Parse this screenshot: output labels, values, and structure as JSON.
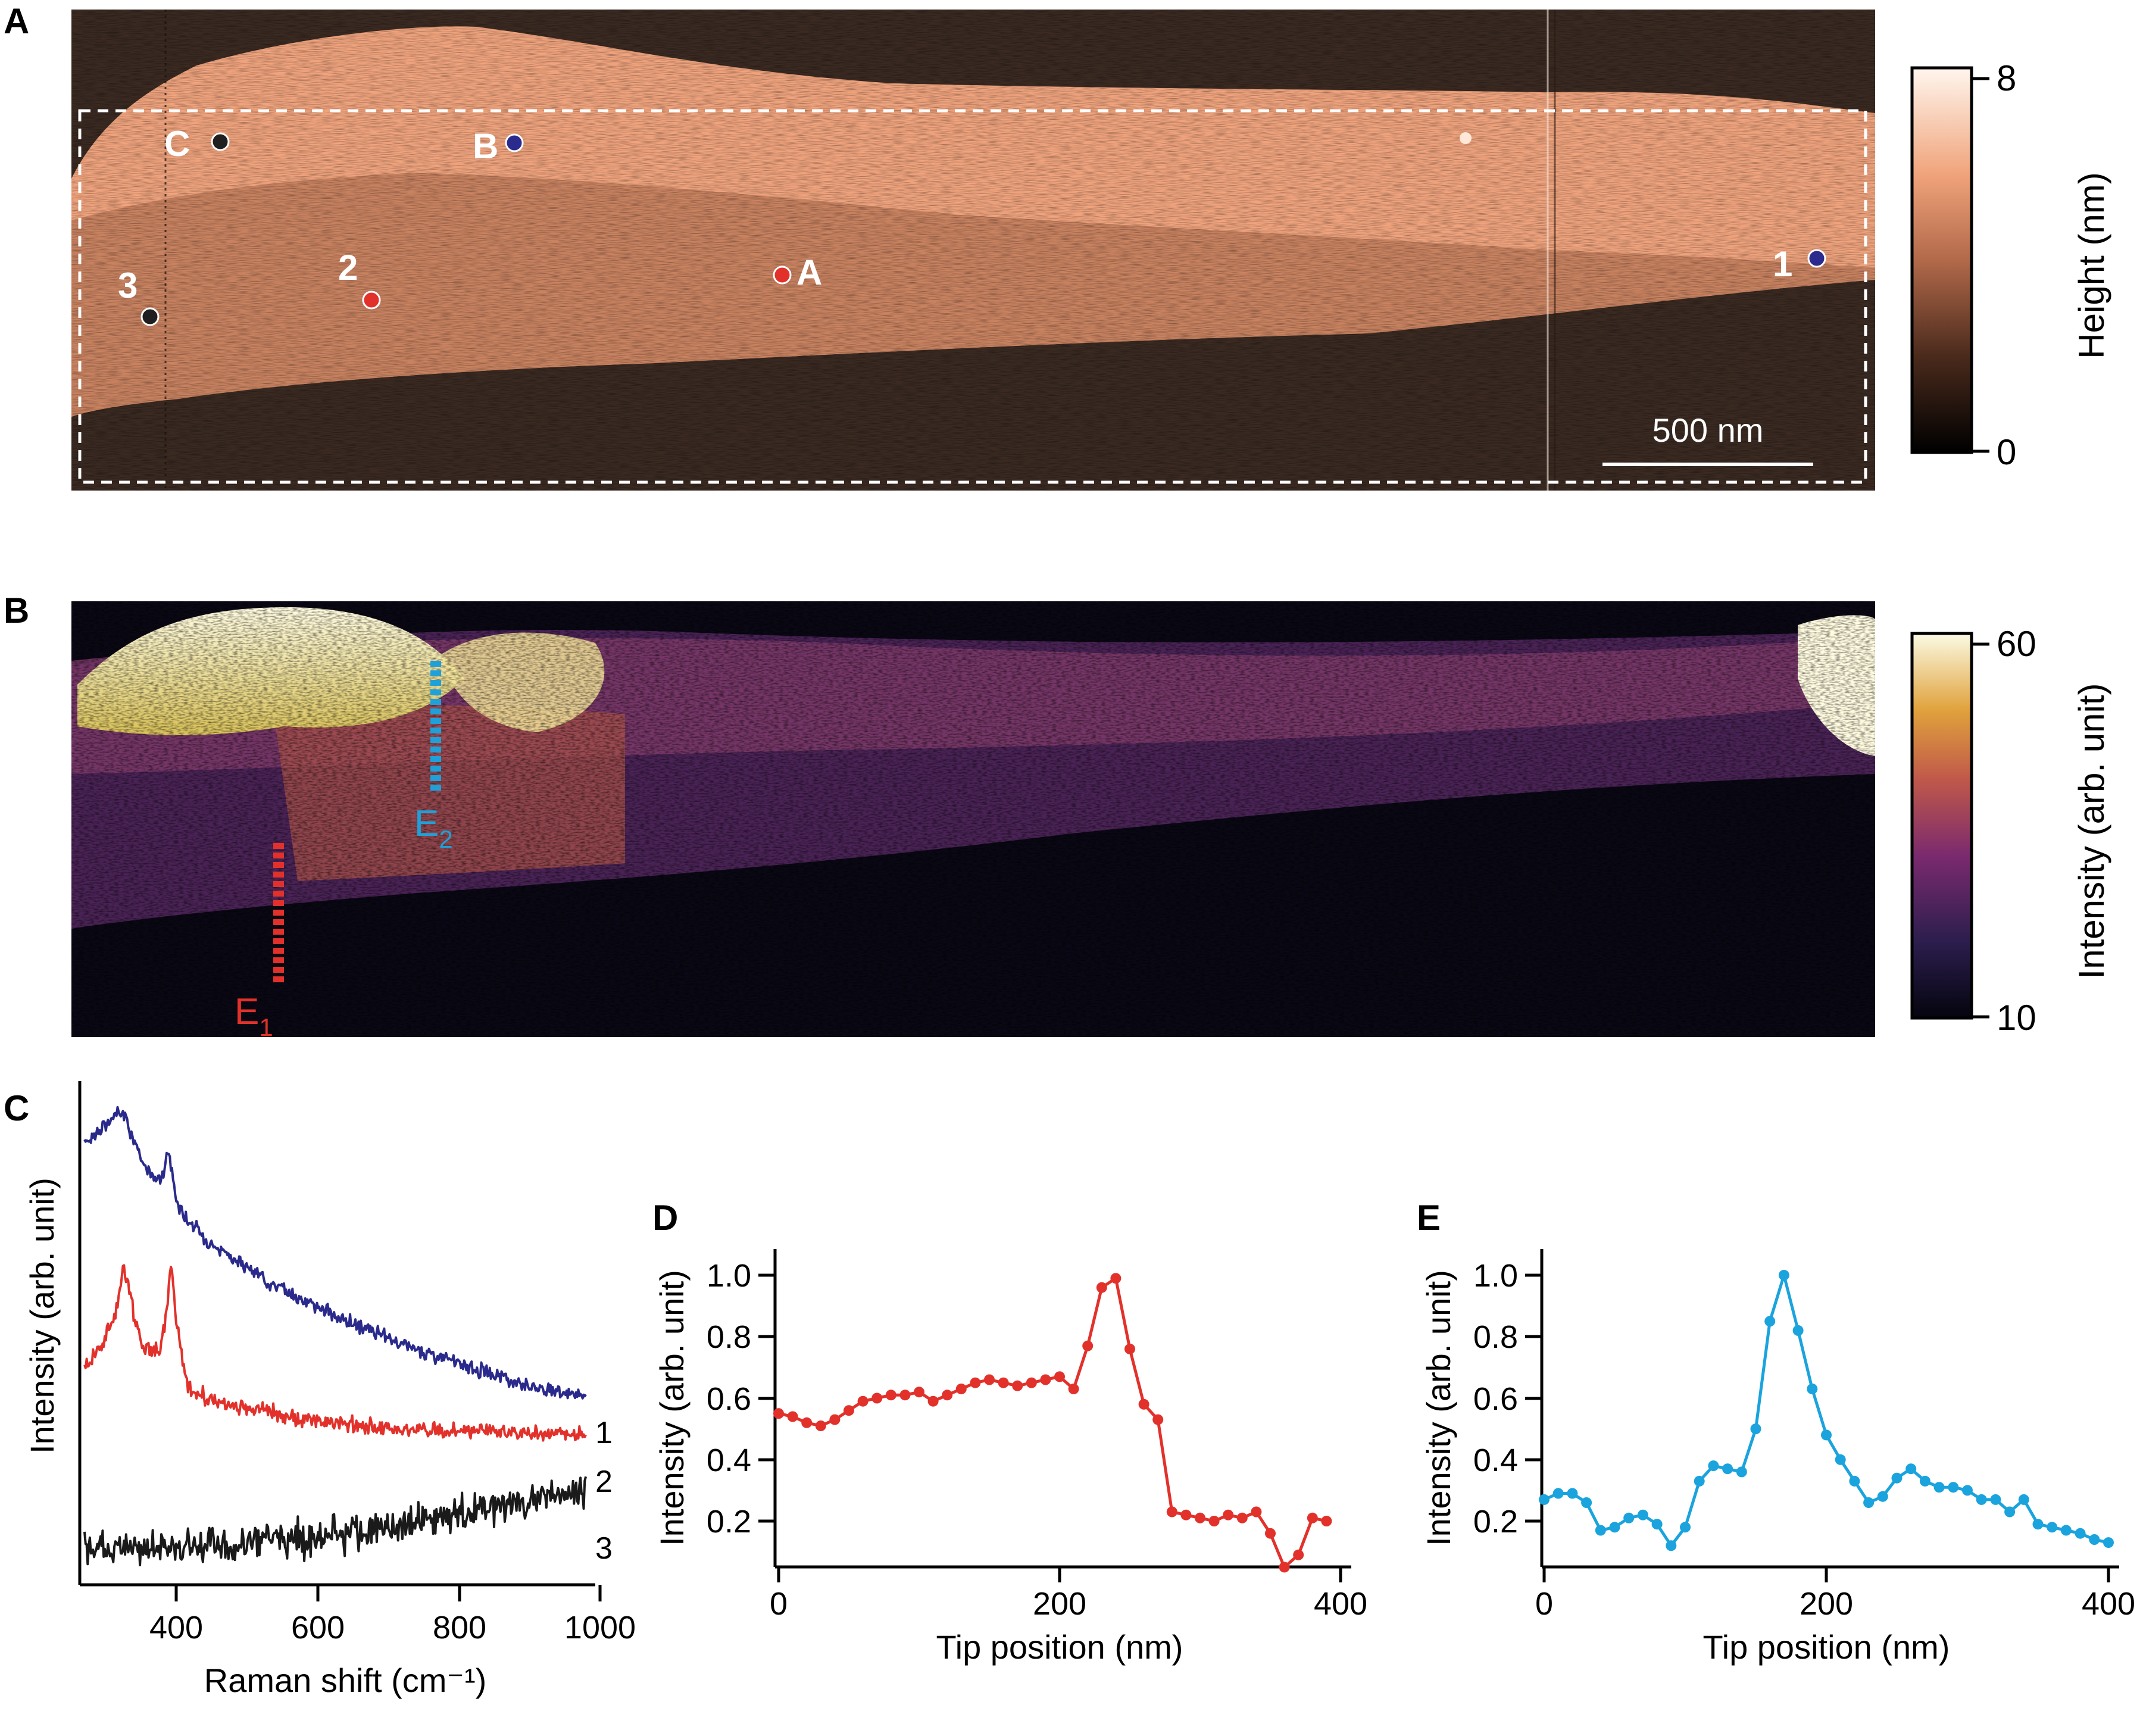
{
  "panels": {
    "A": {
      "letter": "A",
      "markers": [
        {
          "label": "C",
          "color": "#1f1f1f"
        },
        {
          "label": "B",
          "color": "#2b2b8e"
        },
        {
          "label": "3",
          "color": "#1f1f1f"
        },
        {
          "label": "2",
          "color": "#e2312b"
        },
        {
          "label": "A",
          "color": "#e2312b"
        },
        {
          "label": "1",
          "color": "#2b2b8e"
        }
      ],
      "scalebar": "500 nm",
      "colorbar": {
        "label": "Height (nm)",
        "max": "8",
        "min": "0"
      }
    },
    "B": {
      "letter": "B",
      "lines": [
        {
          "label": "E",
          "sub": "1",
          "color": "#e2312b"
        },
        {
          "label": "E",
          "sub": "2",
          "color": "#1fa0d8"
        }
      ],
      "colorbar": {
        "label": "Intensity (arb. unit)",
        "max": "60",
        "min": "10"
      }
    },
    "C": {
      "letter": "C"
    },
    "D": {
      "letter": "D"
    },
    "E": {
      "letter": "E"
    }
  },
  "chart_data": [
    {
      "id": "C",
      "type": "line",
      "xlabel": "Raman shift (cm⁻¹)",
      "ylabel": "Intensity (arb. unit)",
      "xlim": [
        290,
        1010
      ],
      "xticks": [
        "400",
        "600",
        "800",
        "1000"
      ],
      "series": [
        {
          "name": "1",
          "color": "#2a2a8c",
          "x": [
            295,
            310,
            330,
            345,
            352,
            362,
            375,
            390,
            405,
            413,
            418,
            425,
            440,
            470,
            520,
            580,
            650,
            720,
            800,
            870,
            940,
            1000
          ],
          "y": [
            7.35,
            7.5,
            7.7,
            7.95,
            7.85,
            7.45,
            7.0,
            6.75,
            6.7,
            7.25,
            6.8,
            6.25,
            5.95,
            5.55,
            5.1,
            4.65,
            4.2,
            3.8,
            3.45,
            3.15,
            2.9,
            2.75
          ],
          "noise": 0.06
        },
        {
          "name": "2",
          "color": "#e2312b",
          "x": [
            295,
            320,
            340,
            350,
            360,
            375,
            400,
            410,
            417,
            425,
            440,
            470,
            520,
            600,
            700,
            800,
            900,
            1000
          ],
          "y": [
            3.3,
            3.7,
            4.3,
            5.2,
            4.5,
            3.7,
            3.55,
            4.3,
            5.15,
            4.0,
            2.95,
            2.7,
            2.55,
            2.35,
            2.2,
            2.15,
            2.1,
            2.05
          ],
          "noise": 0.07
        },
        {
          "name": "3",
          "color": "#1a1a1a",
          "x": [
            295,
            400,
            500,
            600,
            700,
            800,
            900,
            1000
          ],
          "y": [
            0.0,
            0.0,
            0.05,
            0.2,
            0.35,
            0.55,
            0.85,
            1.05
          ],
          "noise": 0.16
        }
      ]
    },
    {
      "id": "D",
      "type": "line",
      "xlabel": "Tip position (nm)",
      "ylabel": "Intensity (arb. unit)",
      "xlim": [
        0,
        410
      ],
      "ylim": [
        0.04,
        1.04
      ],
      "xticks": [
        "0",
        "200",
        "400"
      ],
      "yticks": [
        "0.2",
        "0.4",
        "0.6",
        "0.8",
        "1.0"
      ],
      "series": [
        {
          "name": "",
          "color": "#e2312b",
          "x": [
            0,
            10,
            20,
            30,
            40,
            50,
            60,
            70,
            80,
            90,
            100,
            110,
            120,
            130,
            140,
            150,
            160,
            170,
            180,
            190,
            200,
            210,
            220,
            230,
            240,
            250,
            260,
            270,
            280,
            290,
            300,
            310,
            320,
            330,
            340,
            350,
            360,
            370,
            380,
            390
          ],
          "y": [
            0.55,
            0.54,
            0.52,
            0.51,
            0.53,
            0.56,
            0.59,
            0.6,
            0.61,
            0.61,
            0.62,
            0.59,
            0.61,
            0.63,
            0.65,
            0.66,
            0.65,
            0.64,
            0.65,
            0.66,
            0.67,
            0.63,
            0.77,
            0.96,
            0.99,
            0.76,
            0.58,
            0.53,
            0.23,
            0.22,
            0.21,
            0.2,
            0.22,
            0.21,
            0.23,
            0.16,
            0.05,
            0.09,
            0.21,
            0.2
          ]
        }
      ]
    },
    {
      "id": "E",
      "type": "line",
      "xlabel": "Tip position (nm)",
      "ylabel": "Intensity (arb. unit)",
      "xlim": [
        0,
        410
      ],
      "ylim": [
        0.04,
        1.04
      ],
      "xticks": [
        "0",
        "200",
        "400"
      ],
      "yticks": [
        "0.2",
        "0.4",
        "0.6",
        "0.8",
        "1.0"
      ],
      "series": [
        {
          "name": "",
          "color": "#1aa3dd",
          "x": [
            0,
            10,
            20,
            30,
            40,
            50,
            60,
            70,
            80,
            90,
            100,
            110,
            120,
            130,
            140,
            150,
            160,
            170,
            180,
            190,
            200,
            210,
            220,
            230,
            240,
            250,
            260,
            270,
            280,
            290,
            300,
            310,
            320,
            330,
            340,
            350,
            360,
            370,
            380,
            390,
            400
          ],
          "y": [
            0.27,
            0.29,
            0.29,
            0.26,
            0.17,
            0.18,
            0.21,
            0.22,
            0.19,
            0.12,
            0.18,
            0.33,
            0.38,
            0.37,
            0.36,
            0.5,
            0.85,
            1.0,
            0.82,
            0.63,
            0.48,
            0.4,
            0.33,
            0.26,
            0.28,
            0.34,
            0.37,
            0.33,
            0.31,
            0.31,
            0.3,
            0.27,
            0.27,
            0.23,
            0.27,
            0.19,
            0.18,
            0.17,
            0.16,
            0.14,
            0.13
          ]
        }
      ]
    }
  ]
}
